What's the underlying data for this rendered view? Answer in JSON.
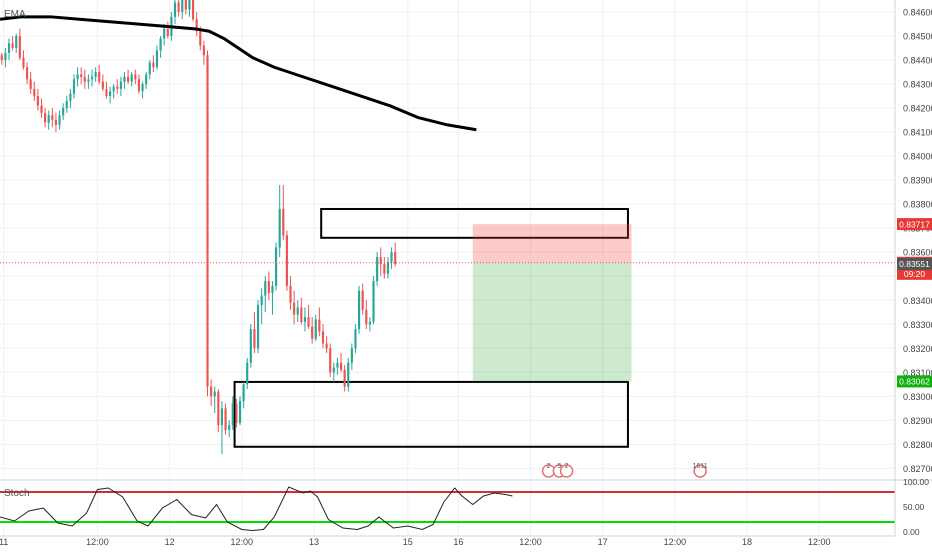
{
  "chart_data": {
    "type": "candlestick",
    "main_indicator_label": "EMA",
    "y_ticks": [
      "0.84600",
      "0.84500",
      "0.84400",
      "0.84300",
      "0.84200",
      "0.84100",
      "0.84000",
      "0.83900",
      "0.83800",
      "0.83700",
      "0.83600",
      "0.83500",
      "0.83400",
      "0.83300",
      "0.83200",
      "0.83100",
      "0.83000",
      "0.82900",
      "0.82800",
      "0.82700"
    ],
    "y_range": [
      0.8266,
      0.8465
    ],
    "price_badges": [
      {
        "name": "stop",
        "text": "0.83717",
        "value": 0.83717,
        "color": "#e53935"
      },
      {
        "name": "last",
        "text": "0.83556",
        "value": 0.83556,
        "color": "#e53935"
      },
      {
        "name": "countdown",
        "text": "09:20",
        "value": 0.8351,
        "color": "#e53935"
      },
      {
        "name": "bid",
        "text": "0.83551",
        "value": 0.83551,
        "color": "#555555"
      },
      {
        "name": "target",
        "text": "0.83062",
        "value": 0.83062,
        "color": "#10b010"
      }
    ],
    "x_ticks": [
      "11",
      "12:00",
      "12",
      "12:00",
      "13",
      "15",
      "16",
      "12:00",
      "17",
      "12:00",
      "18",
      "12:00"
    ],
    "x_range": [
      0,
      248
    ],
    "x_tick_positions": [
      1,
      27,
      47,
      67,
      87,
      113,
      127,
      147,
      167,
      187,
      207,
      227
    ],
    "candles": [
      [
        0.8442,
        0.8443,
        0.8438,
        0.844
      ],
      [
        0.844,
        0.8445,
        0.8437,
        0.8443
      ],
      [
        0.8443,
        0.8449,
        0.844,
        0.8447
      ],
      [
        0.8447,
        0.845,
        0.8444,
        0.8445
      ],
      [
        0.8445,
        0.8451,
        0.8443,
        0.845
      ],
      [
        0.845,
        0.8453,
        0.844,
        0.8441
      ],
      [
        0.8441,
        0.8444,
        0.8436,
        0.8437
      ],
      [
        0.8437,
        0.8439,
        0.843,
        0.8432
      ],
      [
        0.8432,
        0.8435,
        0.8426,
        0.8428
      ],
      [
        0.8428,
        0.8431,
        0.8423,
        0.8425
      ],
      [
        0.8425,
        0.8428,
        0.8419,
        0.8421
      ],
      [
        0.8421,
        0.8424,
        0.8416,
        0.8418
      ],
      [
        0.8418,
        0.842,
        0.8412,
        0.8414
      ],
      [
        0.8414,
        0.8419,
        0.8411,
        0.8417
      ],
      [
        0.8417,
        0.842,
        0.8412,
        0.8415
      ],
      [
        0.8415,
        0.8418,
        0.841,
        0.8413
      ],
      [
        0.8413,
        0.8419,
        0.8411,
        0.8417
      ],
      [
        0.8417,
        0.8422,
        0.8415,
        0.842
      ],
      [
        0.842,
        0.8425,
        0.8418,
        0.8423
      ],
      [
        0.8423,
        0.8428,
        0.842,
        0.8426
      ],
      [
        0.8426,
        0.8434,
        0.8424,
        0.8432
      ],
      [
        0.8432,
        0.8437,
        0.8429,
        0.8434
      ],
      [
        0.8434,
        0.8437,
        0.843,
        0.8433
      ],
      [
        0.8433,
        0.8436,
        0.8428,
        0.8431
      ],
      [
        0.8431,
        0.8434,
        0.8428,
        0.8432
      ],
      [
        0.8432,
        0.8436,
        0.8429,
        0.8433
      ],
      [
        0.8433,
        0.8437,
        0.8431,
        0.8435
      ],
      [
        0.8435,
        0.8438,
        0.843,
        0.8431
      ],
      [
        0.8431,
        0.8434,
        0.8427,
        0.8428
      ],
      [
        0.8428,
        0.8431,
        0.8424,
        0.8425
      ],
      [
        0.8425,
        0.8429,
        0.8422,
        0.8427
      ],
      [
        0.8427,
        0.843,
        0.8424,
        0.8429
      ],
      [
        0.8429,
        0.8432,
        0.8426,
        0.8428
      ],
      [
        0.8428,
        0.8433,
        0.8425,
        0.8431
      ],
      [
        0.8431,
        0.8435,
        0.8428,
        0.8433
      ],
      [
        0.8433,
        0.8436,
        0.843,
        0.8431
      ],
      [
        0.8431,
        0.8435,
        0.8429,
        0.8434
      ],
      [
        0.8434,
        0.8436,
        0.843,
        0.8432
      ],
      [
        0.8432,
        0.8434,
        0.8426,
        0.8427
      ],
      [
        0.8427,
        0.8431,
        0.8424,
        0.843
      ],
      [
        0.843,
        0.8435,
        0.8428,
        0.8434
      ],
      [
        0.8434,
        0.844,
        0.8432,
        0.8439
      ],
      [
        0.8439,
        0.8442,
        0.8435,
        0.8437
      ],
      [
        0.8437,
        0.8446,
        0.8436,
        0.8444
      ],
      [
        0.8444,
        0.845,
        0.8441,
        0.8449
      ],
      [
        0.8449,
        0.8455,
        0.8446,
        0.8453
      ],
      [
        0.8453,
        0.8456,
        0.8449,
        0.845
      ],
      [
        0.845,
        0.846,
        0.8448,
        0.8458
      ],
      [
        0.8458,
        0.8466,
        0.8455,
        0.8464
      ],
      [
        0.8464,
        0.8467,
        0.8458,
        0.846
      ],
      [
        0.846,
        0.8466,
        0.8457,
        0.8465
      ],
      [
        0.8465,
        0.8467,
        0.8459,
        0.8461
      ],
      [
        0.8461,
        0.8467,
        0.8458,
        0.8465
      ],
      [
        0.8465,
        0.8467,
        0.8456,
        0.8457
      ],
      [
        0.8457,
        0.846,
        0.845,
        0.8452
      ],
      [
        0.8452,
        0.8454,
        0.8444,
        0.8446
      ],
      [
        0.8446,
        0.8448,
        0.8438,
        0.8442
      ],
      [
        0.8442,
        0.8444,
        0.83,
        0.8304
      ],
      [
        0.8304,
        0.8307,
        0.8296,
        0.83
      ],
      [
        0.83,
        0.8304,
        0.8293,
        0.8302
      ],
      [
        0.8302,
        0.8303,
        0.8285,
        0.8288
      ],
      [
        0.8288,
        0.8298,
        0.8276,
        0.8295
      ],
      [
        0.8295,
        0.8297,
        0.8284,
        0.8286
      ],
      [
        0.8286,
        0.829,
        0.8283,
        0.8288
      ],
      [
        0.8288,
        0.83,
        0.8286,
        0.8297
      ],
      [
        0.8297,
        0.8299,
        0.8287,
        0.8289
      ],
      [
        0.8289,
        0.83,
        0.8288,
        0.8298
      ],
      [
        0.8298,
        0.8306,
        0.8295,
        0.8305
      ],
      [
        0.8305,
        0.8316,
        0.8303,
        0.8314
      ],
      [
        0.8314,
        0.833,
        0.8312,
        0.8328
      ],
      [
        0.8328,
        0.8335,
        0.8318,
        0.832
      ],
      [
        0.832,
        0.834,
        0.8318,
        0.8338
      ],
      [
        0.8338,
        0.8345,
        0.833,
        0.8342
      ],
      [
        0.8342,
        0.835,
        0.8335,
        0.8348
      ],
      [
        0.8348,
        0.8352,
        0.834,
        0.8343
      ],
      [
        0.8343,
        0.8348,
        0.8334,
        0.8346
      ],
      [
        0.8346,
        0.8364,
        0.8344,
        0.8362
      ],
      [
        0.8362,
        0.8388,
        0.8358,
        0.8378
      ],
      [
        0.8378,
        0.8388,
        0.8365,
        0.8367
      ],
      [
        0.8367,
        0.8369,
        0.8344,
        0.8346
      ],
      [
        0.8346,
        0.835,
        0.8336,
        0.8339
      ],
      [
        0.8339,
        0.8344,
        0.833,
        0.8334
      ],
      [
        0.8334,
        0.834,
        0.8331,
        0.8337
      ],
      [
        0.8337,
        0.8341,
        0.833,
        0.8331
      ],
      [
        0.8331,
        0.8337,
        0.8327,
        0.8333
      ],
      [
        0.8333,
        0.8338,
        0.8328,
        0.8329
      ],
      [
        0.8329,
        0.8333,
        0.8322,
        0.8324
      ],
      [
        0.8324,
        0.8334,
        0.8323,
        0.8332
      ],
      [
        0.8332,
        0.8337,
        0.8325,
        0.8327
      ],
      [
        0.8327,
        0.833,
        0.832,
        0.8322
      ],
      [
        0.8322,
        0.8325,
        0.8318,
        0.832
      ],
      [
        0.832,
        0.8322,
        0.8308,
        0.831
      ],
      [
        0.831,
        0.8314,
        0.8306,
        0.8312
      ],
      [
        0.8312,
        0.8316,
        0.8309,
        0.8314
      ],
      [
        0.8314,
        0.8318,
        0.831,
        0.8311
      ],
      [
        0.8311,
        0.8313,
        0.8302,
        0.8304
      ],
      [
        0.8304,
        0.8316,
        0.8302,
        0.8314
      ],
      [
        0.8314,
        0.8322,
        0.8311,
        0.832
      ],
      [
        0.832,
        0.833,
        0.8318,
        0.8328
      ],
      [
        0.8328,
        0.8346,
        0.8326,
        0.8344
      ],
      [
        0.8344,
        0.8347,
        0.8334,
        0.8336
      ],
      [
        0.8336,
        0.834,
        0.8328,
        0.833
      ],
      [
        0.833,
        0.8333,
        0.8327,
        0.8331
      ],
      [
        0.8331,
        0.835,
        0.833,
        0.8348
      ],
      [
        0.8348,
        0.836,
        0.8346,
        0.8358
      ],
      [
        0.8358,
        0.8362,
        0.835,
        0.8355
      ],
      [
        0.8355,
        0.8358,
        0.8349,
        0.8351
      ],
      [
        0.8351,
        0.8358,
        0.8349,
        0.8356
      ],
      [
        0.8356,
        0.8362,
        0.8353,
        0.836
      ],
      [
        0.836,
        0.8364,
        0.8354,
        0.8355
      ]
    ],
    "ema_points": [
      [
        0,
        0.8457
      ],
      [
        6,
        0.8458
      ],
      [
        14,
        0.8458
      ],
      [
        22,
        0.8457
      ],
      [
        30,
        0.8456
      ],
      [
        38,
        0.8455
      ],
      [
        46,
        0.8454
      ],
      [
        54,
        0.8453
      ],
      [
        58,
        0.8452
      ],
      [
        62,
        0.8449
      ],
      [
        66,
        0.8445
      ],
      [
        70,
        0.8441
      ],
      [
        76,
        0.8437
      ],
      [
        84,
        0.8433
      ],
      [
        92,
        0.8429
      ],
      [
        100,
        0.8425
      ],
      [
        108,
        0.8421
      ],
      [
        116,
        0.8416
      ],
      [
        124,
        0.8413
      ],
      [
        132,
        0.8411
      ]
    ],
    "zones": [
      {
        "name": "upper-supply-zone",
        "x_start": 89,
        "x_end": 174,
        "y_top": 0.8378,
        "y_bottom": 0.8366
      },
      {
        "name": "lower-demand-zone",
        "x_start": 65,
        "x_end": 174,
        "y_top": 0.8306,
        "y_bottom": 0.8279
      }
    ],
    "position": {
      "entry": 0.83556,
      "stop": 0.83717,
      "target": 0.83062,
      "x_start": 131,
      "x_end": 175
    },
    "event_markers": [
      {
        "name": "event-marker-1",
        "text": "2",
        "x": 152
      },
      {
        "name": "event-marker-2",
        "text": "5",
        "x": 155
      },
      {
        "name": "event-marker-3",
        "text": "2",
        "x": 157
      },
      {
        "name": "event-marker-4",
        "text": "1611",
        "x": 194
      }
    ],
    "oscillator": {
      "label": "Stoch",
      "y_range": [
        0,
        100
      ],
      "y_ticks": [
        "100.00",
        "50.00",
        "0.00"
      ],
      "upper_band": 80,
      "lower_band": 20,
      "values": [
        [
          0,
          30
        ],
        [
          4,
          22
        ],
        [
          8,
          42
        ],
        [
          12,
          48
        ],
        [
          16,
          18
        ],
        [
          20,
          12
        ],
        [
          24,
          38
        ],
        [
          27,
          85
        ],
        [
          30,
          88
        ],
        [
          34,
          70
        ],
        [
          38,
          22
        ],
        [
          41,
          12
        ],
        [
          45,
          48
        ],
        [
          49,
          65
        ],
        [
          53,
          35
        ],
        [
          57,
          28
        ],
        [
          60,
          55
        ],
        [
          63,
          20
        ],
        [
          67,
          5
        ],
        [
          70,
          3
        ],
        [
          73,
          5
        ],
        [
          76,
          30
        ],
        [
          80,
          90
        ],
        [
          84,
          78
        ],
        [
          86,
          82
        ],
        [
          88,
          70
        ],
        [
          91,
          25
        ],
        [
          95,
          8
        ],
        [
          99,
          5
        ],
        [
          102,
          12
        ],
        [
          105,
          30
        ],
        [
          109,
          8
        ],
        [
          113,
          12
        ],
        [
          117,
          5
        ],
        [
          120,
          15
        ],
        [
          123,
          60
        ],
        [
          126,
          88
        ],
        [
          128,
          72
        ],
        [
          131,
          55
        ],
        [
          134,
          72
        ],
        [
          137,
          78
        ],
        [
          140,
          75
        ],
        [
          142,
          72
        ]
      ]
    }
  }
}
